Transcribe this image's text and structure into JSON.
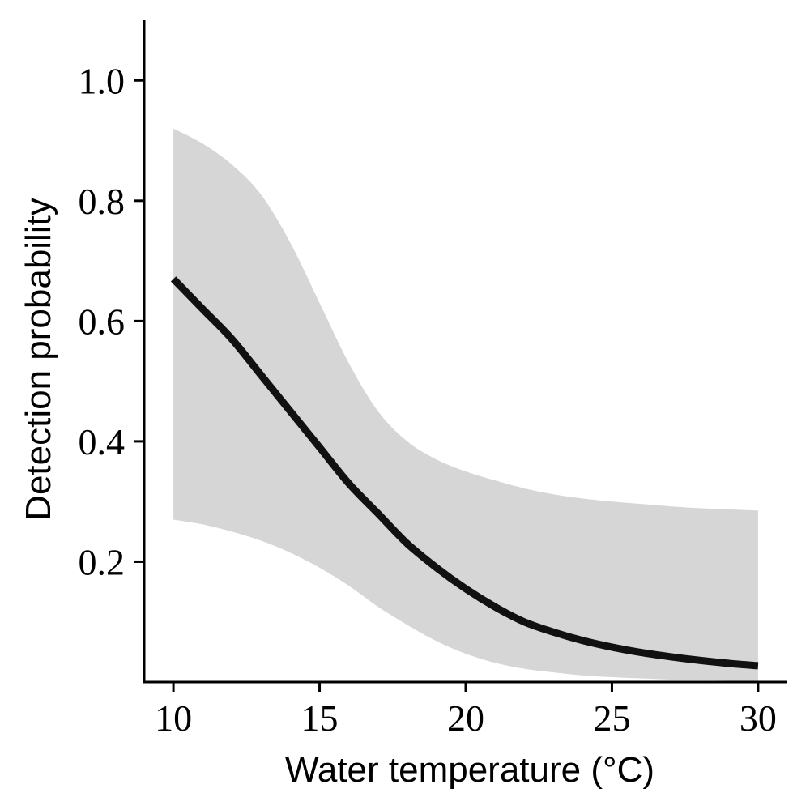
{
  "chart_data": {
    "type": "line",
    "xlabel": "Water temperature (°C)",
    "ylabel": "Detection probability",
    "xlim": [
      9,
      31
    ],
    "ylim": [
      0,
      1.1
    ],
    "xticks": [
      "10",
      "15",
      "20",
      "25",
      "30"
    ],
    "yticks": [
      "0.2",
      "0.4",
      "0.6",
      "0.8",
      "1.0"
    ],
    "grid": false,
    "series": [
      {
        "x": [
          10,
          11,
          12,
          13,
          14,
          15,
          16,
          17,
          18,
          19,
          20,
          21,
          22,
          23,
          24,
          25,
          26,
          27,
          28,
          29,
          30
        ],
        "y": [
          0.67,
          0.62,
          0.57,
          0.51,
          0.45,
          0.39,
          0.33,
          0.28,
          0.23,
          0.19,
          0.155,
          0.125,
          0.1,
          0.083,
          0.069,
          0.058,
          0.049,
          0.042,
          0.036,
          0.031,
          0.027
        ],
        "lower": [
          0.27,
          0.262,
          0.25,
          0.235,
          0.215,
          0.19,
          0.16,
          0.125,
          0.095,
          0.068,
          0.047,
          0.032,
          0.022,
          0.016,
          0.011,
          0.008,
          0.006,
          0.004,
          0.003,
          0.002,
          0.001
        ],
        "upper": [
          0.92,
          0.895,
          0.86,
          0.81,
          0.73,
          0.63,
          0.53,
          0.45,
          0.4,
          0.37,
          0.35,
          0.335,
          0.322,
          0.312,
          0.305,
          0.3,
          0.296,
          0.292,
          0.289,
          0.287,
          0.285
        ]
      }
    ],
    "colors": {
      "line": "#111111",
      "ribbon": "#d6d6d6",
      "axis": "#000000"
    }
  }
}
